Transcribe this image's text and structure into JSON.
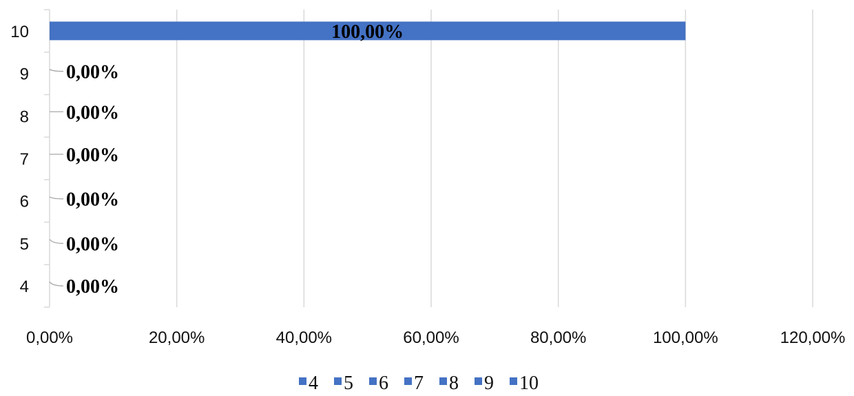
{
  "chart_data": {
    "type": "bar",
    "orientation": "horizontal",
    "categories": [
      "4",
      "5",
      "6",
      "7",
      "8",
      "9",
      "10"
    ],
    "values": [
      0,
      0,
      0,
      0,
      0,
      0,
      100
    ],
    "data_labels": [
      "0,00%",
      "0,00%",
      "0,00%",
      "0,00%",
      "0,00%",
      "0,00%",
      "100,00%"
    ],
    "x_ticks": [
      "0,00%",
      "20,00%",
      "40,00%",
      "60,00%",
      "80,00%",
      "100,00%",
      "120,00%"
    ],
    "xlim": [
      0,
      120
    ],
    "grid": true,
    "legend": {
      "placement": "bottom",
      "entries": [
        "4",
        "5",
        "6",
        "7",
        "8",
        "9",
        "10"
      ]
    },
    "bar_color": "#4472C4",
    "title": "",
    "xlabel": "",
    "ylabel": ""
  }
}
